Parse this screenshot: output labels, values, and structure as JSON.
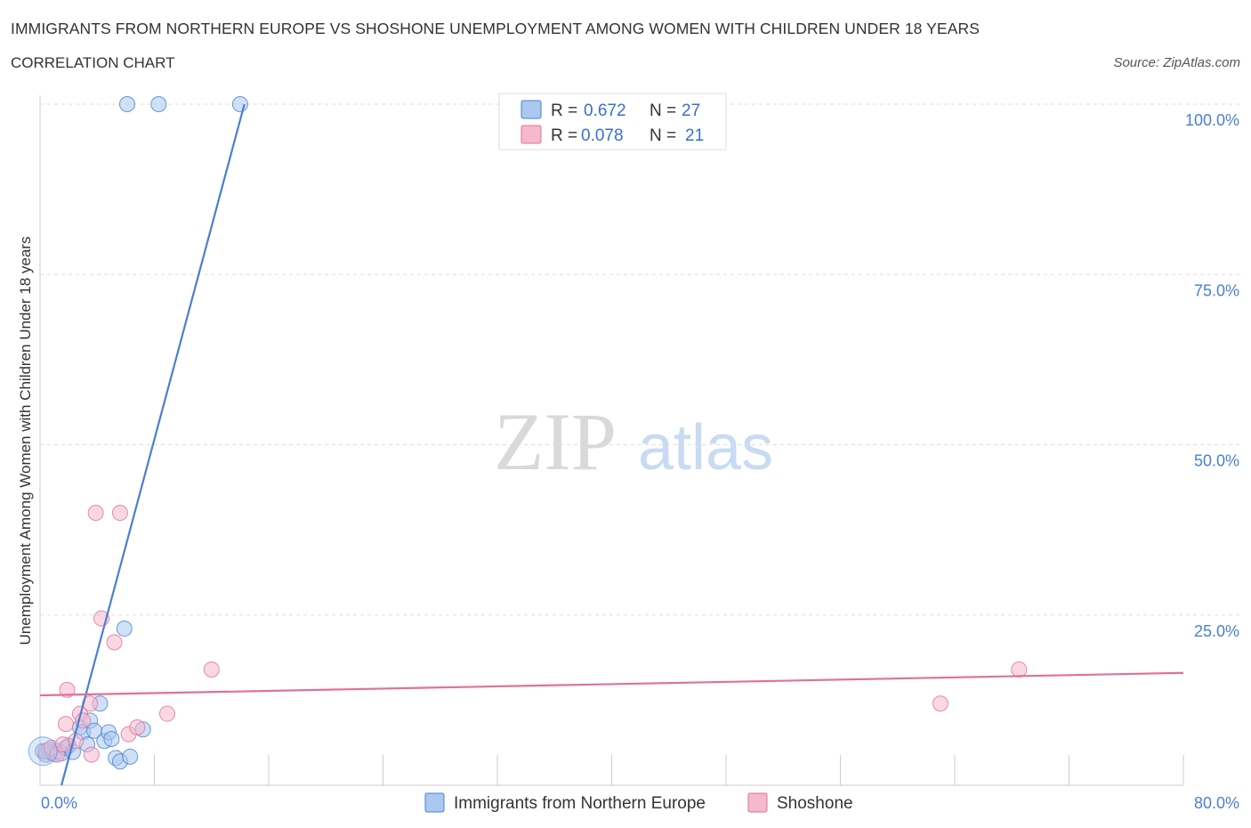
{
  "header": {
    "title": "IMMIGRANTS FROM NORTHERN EUROPE VS SHOSHONE UNEMPLOYMENT AMONG WOMEN WITH CHILDREN UNDER 18 YEARS",
    "subtitle": "CORRELATION CHART",
    "source": "Source: ZipAtlas.com"
  },
  "watermark": {
    "zip": "ZIP",
    "atlas": "atlas"
  },
  "legend": {
    "series1": {
      "r_label": "R = ",
      "r_value": "0.672",
      "n_label": "N = ",
      "n_value": "27"
    },
    "series2": {
      "r_label": "R = ",
      "r_value": "0.078",
      "n_label": "N = ",
      "n_value": "21"
    }
  },
  "chart_data": {
    "type": "scatter",
    "title": "IMMIGRANTS FROM NORTHERN EUROPE VS SHOSHONE UNEMPLOYMENT AMONG WOMEN WITH CHILDREN UNDER 18 YEARS",
    "xlabel": "",
    "ylabel": "Unemployment Among Women with Children Under 18 years",
    "xlim": [
      0,
      80
    ],
    "ylim": [
      0,
      100
    ],
    "x_tick_labels": [
      "0.0%",
      "80.0%"
    ],
    "y_ticks": [
      25,
      50,
      75,
      100
    ],
    "y_tick_labels": [
      "25.0%",
      "50.0%",
      "75.0%",
      "100.0%"
    ],
    "grid": true,
    "colors": {
      "series1": "#4a7fd0",
      "series1_fill": "#aac8f0",
      "series2": "#e0709a",
      "series2_fill": "#f5b8cc"
    },
    "series": [
      {
        "name": "Immigrants from Northern Europe",
        "points": [
          [
            0.2,
            5.0
          ],
          [
            0.4,
            4.5
          ],
          [
            0.6,
            5.2
          ],
          [
            0.8,
            4.8
          ],
          [
            1.0,
            4.6
          ],
          [
            1.2,
            5.0
          ],
          [
            1.5,
            4.7
          ],
          [
            1.8,
            5.5
          ],
          [
            2.0,
            5.8
          ],
          [
            2.3,
            4.9
          ],
          [
            2.8,
            8.5
          ],
          [
            3.0,
            7.8
          ],
          [
            3.3,
            6.0
          ],
          [
            3.5,
            9.5
          ],
          [
            3.8,
            8.0
          ],
          [
            4.2,
            12.0
          ],
          [
            4.5,
            6.5
          ],
          [
            4.8,
            7.8
          ],
          [
            5.0,
            6.8
          ],
          [
            5.3,
            4.0
          ],
          [
            5.6,
            3.5
          ],
          [
            5.9,
            23.0
          ],
          [
            6.3,
            4.2
          ],
          [
            7.2,
            8.2
          ],
          [
            6.1,
            100.0
          ],
          [
            8.3,
            100.0
          ],
          [
            14.0,
            100.0
          ]
        ],
        "trend": {
          "x1": 1.5,
          "y1": 0,
          "x2": 14.3,
          "y2": 100
        }
      },
      {
        "name": "Shoshone",
        "points": [
          [
            0.4,
            5.0
          ],
          [
            0.8,
            5.5
          ],
          [
            1.2,
            4.5
          ],
          [
            1.6,
            6.0
          ],
          [
            1.8,
            9.0
          ],
          [
            1.9,
            14.0
          ],
          [
            2.5,
            6.5
          ],
          [
            2.8,
            10.5
          ],
          [
            3.0,
            9.5
          ],
          [
            3.5,
            12.0
          ],
          [
            3.6,
            4.5
          ],
          [
            3.9,
            40.0
          ],
          [
            4.3,
            24.5
          ],
          [
            5.2,
            21.0
          ],
          [
            5.6,
            40.0
          ],
          [
            6.2,
            7.5
          ],
          [
            6.8,
            8.5
          ],
          [
            8.9,
            10.5
          ],
          [
            12.0,
            17.0
          ],
          [
            63.0,
            12.0
          ],
          [
            68.5,
            17.0
          ]
        ],
        "trend": {
          "x1": 0,
          "y1": 13.2,
          "x2": 80,
          "y2": 16.5
        }
      }
    ]
  }
}
